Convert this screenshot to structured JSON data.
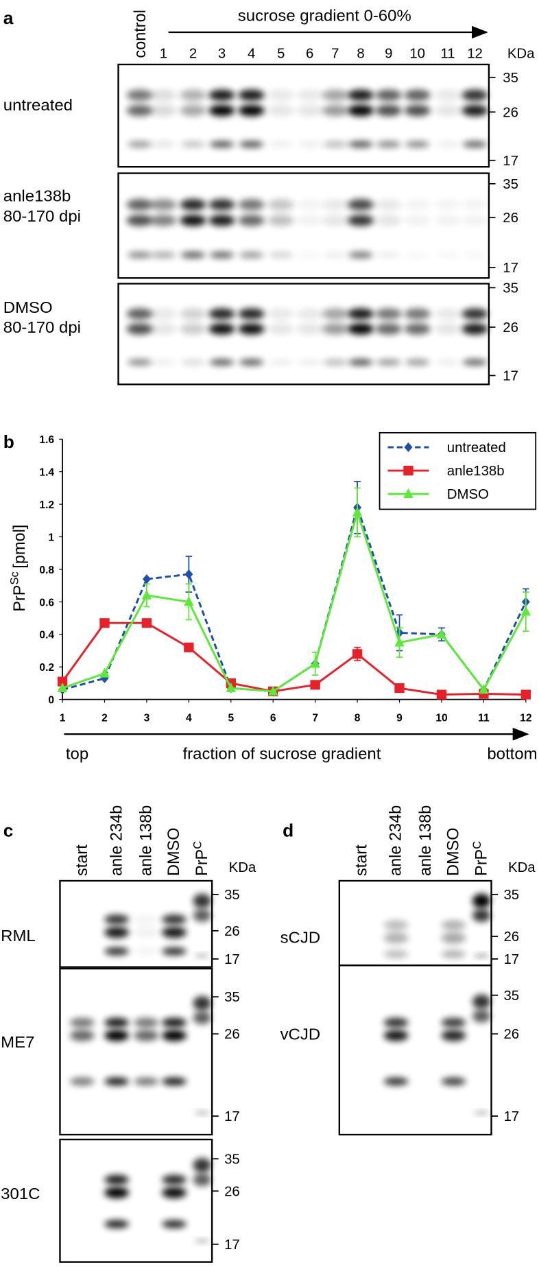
{
  "panel_a": {
    "label": "a",
    "gradient_label": "sucrose gradient 0-60%",
    "control_label": "control",
    "fractions": [
      1,
      2,
      3,
      4,
      5,
      6,
      7,
      8,
      9,
      10,
      11,
      12
    ],
    "unit": "KDa",
    "rows": [
      {
        "label": [
          "untreated"
        ],
        "markers": [
          35,
          26,
          17
        ]
      },
      {
        "label": [
          "anle138b",
          "80-170 dpi"
        ],
        "markers": [
          35,
          26,
          17
        ]
      },
      {
        "label": [
          "DMSO",
          "80-170 dpi"
        ],
        "markers": [
          35,
          26,
          17
        ]
      }
    ]
  },
  "chart_data": {
    "type": "line",
    "panel_label": "b",
    "ylabel": {
      "text": "PrP",
      "sup": "Sc",
      "unit": "[pmol]"
    },
    "x": [
      1,
      2,
      3,
      4,
      5,
      6,
      7,
      8,
      9,
      10,
      11,
      12
    ],
    "xlim": [
      1,
      12
    ],
    "xticks": [
      1,
      2,
      3,
      4,
      5,
      6,
      7,
      8,
      9,
      10,
      11,
      12
    ],
    "ylim": [
      0,
      1.6
    ],
    "yticks": [
      0,
      0.2,
      0.4,
      0.6,
      0.8,
      1,
      1.2,
      1.4,
      1.6
    ],
    "axis_annotations": {
      "start": "top",
      "middle": "fraction of sucrose gradient",
      "end": "bottom"
    },
    "legend": "upper right",
    "series": [
      {
        "name": "untreated",
        "color": "#1f4fa8",
        "marker": "diamond",
        "dashed": true,
        "values": [
          0.06,
          0.13,
          0.74,
          0.77,
          0.07,
          0.05,
          0.22,
          1.18,
          0.41,
          0.4,
          0.06,
          0.6
        ],
        "errors": [
          0,
          0,
          0,
          0.11,
          0,
          0,
          0,
          0.16,
          0.11,
          0.04,
          0,
          0.08
        ]
      },
      {
        "name": "anle138b",
        "color": "#e8202a",
        "marker": "square",
        "dashed": false,
        "values": [
          0.11,
          0.47,
          0.47,
          0.32,
          0.1,
          0.05,
          0.09,
          0.28,
          0.07,
          0.03,
          0.035,
          0.03
        ],
        "errors": [
          0,
          0,
          0,
          0,
          0,
          0,
          0,
          0.04,
          0,
          0,
          0,
          0
        ]
      },
      {
        "name": "DMSO",
        "color": "#5ee83a",
        "marker": "triangle",
        "dashed": false,
        "values": [
          0.07,
          0.16,
          0.64,
          0.6,
          0.07,
          0.05,
          0.22,
          1.15,
          0.35,
          0.4,
          0.06,
          0.54
        ],
        "errors": [
          0,
          0,
          0.07,
          0.11,
          0,
          0,
          0.07,
          0.15,
          0.09,
          0,
          0,
          0.12
        ]
      }
    ]
  },
  "panel_c": {
    "label": "c",
    "lanes": [
      "start",
      "anle 234b",
      "anle 138b",
      "DMSO"
    ],
    "prpc": {
      "text": "PrP",
      "sup": "C"
    },
    "unit": "KDa",
    "rows": [
      {
        "label": "RML",
        "markers": [
          35,
          26,
          17
        ]
      },
      {
        "label": "ME7",
        "markers": [
          35,
          26,
          17
        ]
      },
      {
        "label": "301C",
        "markers": [
          35,
          26,
          17
        ]
      }
    ]
  },
  "panel_d": {
    "label": "d",
    "lanes": [
      "start",
      "anle 234b",
      "anle 138b",
      "DMSO"
    ],
    "prpc": {
      "text": "PrP",
      "sup": "C"
    },
    "unit": "KDa",
    "rows": [
      {
        "label": "sCJD",
        "markers": [
          35,
          26,
          17
        ]
      },
      {
        "label": "vCJD",
        "markers": [
          35,
          26,
          17
        ]
      }
    ]
  }
}
